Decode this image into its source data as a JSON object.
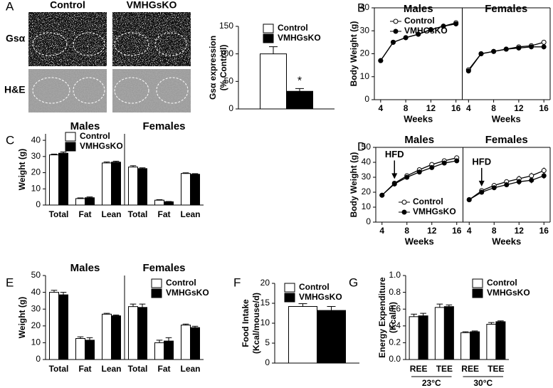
{
  "micrographs": {
    "panel": "A",
    "columns": [
      "Control",
      "VMHGsKO"
    ],
    "rows": [
      "Gsα",
      "H&E"
    ]
  },
  "chart_data": [
    {
      "type": "bar",
      "ylabel": [
        "Gsα expression",
        "(% Control)"
      ],
      "categories": [
        null
      ],
      "series": [
        {
          "name": "Control",
          "color": "#ffffff",
          "values": [
            100
          ],
          "errors": [
            13
          ]
        },
        {
          "name": "VMHGsKO",
          "color": "#000000",
          "values": [
            32
          ],
          "errors": [
            5
          ]
        }
      ],
      "annotation": "*",
      "ylim": [
        0,
        150
      ],
      "yticks": [
        0,
        50,
        100,
        150
      ]
    },
    {
      "type": "line",
      "panel": "B",
      "ylabel": "Body Weight (g)",
      "xlabel": "Weeks",
      "facets": [
        {
          "title": "Males"
        },
        {
          "title": "Females"
        }
      ],
      "x": [
        4,
        6,
        8,
        10,
        12,
        14,
        16
      ],
      "series": [
        {
          "name": "Control",
          "color": "#ffffff",
          "values": [
            [
              17,
              25,
              27,
              28.5,
              30.5,
              32,
              33.5
            ],
            [
              13,
              20,
              21,
              22,
              23,
              23.5,
              25
            ]
          ]
        },
        {
          "name": "VMHGsKO",
          "color": "#000000",
          "values": [
            [
              17,
              25,
              27,
              28.5,
              30.5,
              32,
              33
            ],
            [
              12.5,
              20,
              21,
              22,
              22.5,
              23,
              23
            ]
          ]
        }
      ],
      "xlim": [
        3,
        17
      ],
      "xticks": [
        4,
        8,
        12,
        16
      ],
      "ylim": [
        0,
        40
      ],
      "yticks": [
        0,
        10,
        20,
        30,
        40
      ]
    },
    {
      "type": "bar",
      "panel": "C",
      "ylabel": "Weight (g)",
      "facets": [
        {
          "title": "Males"
        },
        {
          "title": "Females"
        }
      ],
      "categories": [
        "Total",
        "Fat",
        "Lean"
      ],
      "series": [
        {
          "name": "Control",
          "color": "#ffffff",
          "values": [
            [
              31,
              4,
              26
            ],
            [
              23.5,
              3,
              19.5
            ]
          ],
          "errors": [
            [
              0.5,
              0.4,
              0.6
            ],
            [
              0.8,
              0.3,
              0.4
            ]
          ]
        },
        {
          "name": "VMHGsKO",
          "color": "#000000",
          "values": [
            [
              32,
              4.5,
              26.5
            ],
            [
              22.5,
              2,
              19
            ]
          ],
          "errors": [
            [
              0.8,
              0.5,
              0.6
            ],
            [
              0.5,
              0.2,
              0.4
            ]
          ]
        }
      ],
      "ylim": [
        0,
        44
      ],
      "yticks": [
        0,
        10,
        20,
        30,
        40
      ]
    },
    {
      "type": "line",
      "panel": "D",
      "ylabel": "Body Weight (g)",
      "xlabel": "Weeks",
      "facets": [
        {
          "title": "Males",
          "annotation": {
            "text": "HFD",
            "x": 6
          }
        },
        {
          "title": "Females",
          "annotation": {
            "text": "HFD",
            "x": 6
          }
        }
      ],
      "x": [
        4,
        6,
        8,
        10,
        12,
        14,
        16
      ],
      "series": [
        {
          "name": "Control",
          "color": "#ffffff",
          "values": [
            [
              18,
              26,
              31,
              35,
              38.5,
              41,
              43
            ],
            [
              15,
              21,
              24.5,
              27,
              29,
              31,
              34.5
            ]
          ],
          "errors": [
            [
              1.5,
              1,
              1,
              1,
              1.2,
              1.3,
              1.5
            ],
            [
              0.5,
              1,
              1.5,
              1.5,
              2,
              2,
              2
            ]
          ]
        },
        {
          "name": "VMHGsKO",
          "color": "#000000",
          "values": [
            [
              18,
              25.5,
              30,
              33.5,
              36.5,
              39.5,
              41
            ],
            [
              15,
              20,
              23,
              25,
              27,
              28,
              31
            ]
          ],
          "errors": [
            [
              1.5,
              1,
              1,
              1,
              1.2,
              1.3,
              1.5
            ],
            [
              0.5,
              1,
              1.5,
              1.5,
              2,
              2,
              2
            ]
          ]
        }
      ],
      "xlim": [
        3,
        17
      ],
      "xticks": [
        4,
        8,
        12,
        16
      ],
      "ylim": [
        0,
        50
      ],
      "yticks": [
        0,
        10,
        20,
        30,
        40,
        50
      ]
    },
    {
      "type": "bar",
      "panel": "E",
      "ylabel": "Weight (g)",
      "facets": [
        {
          "title": "Males"
        },
        {
          "title": "Females"
        }
      ],
      "categories": [
        "Total",
        "Fat",
        "Lean"
      ],
      "series": [
        {
          "name": "Control",
          "color": "#ffffff",
          "values": [
            [
              40,
              12.5,
              27
            ],
            [
              31.5,
              10,
              20.5
            ]
          ],
          "errors": [
            [
              1.2,
              1,
              0.5
            ],
            [
              1.5,
              1.5,
              0.6
            ]
          ]
        },
        {
          "name": "VMHGsKO",
          "color": "#000000",
          "values": [
            [
              38.5,
              11.5,
              26
            ],
            [
              31,
              11,
              19
            ]
          ],
          "errors": [
            [
              1.5,
              1.5,
              0.5
            ],
            [
              2,
              2,
              0.8
            ]
          ]
        }
      ],
      "ylim": [
        0,
        50
      ],
      "yticks": [
        0,
        10,
        20,
        30,
        40,
        50
      ]
    },
    {
      "type": "bar",
      "panel": "F",
      "ylabel": [
        "Food Intake",
        "(Kcal/mouse/d)"
      ],
      "categories": [
        null
      ],
      "series": [
        {
          "name": "Control",
          "color": "#ffffff",
          "values": [
            14.2
          ],
          "errors": [
            0.7
          ]
        },
        {
          "name": "VMHGsKO",
          "color": "#000000",
          "values": [
            13.2
          ],
          "errors": [
            1
          ]
        }
      ],
      "ylim": [
        0,
        20
      ],
      "yticks": [
        0,
        5,
        10,
        15,
        20
      ]
    },
    {
      "type": "bar",
      "panel": "G",
      "ylabel": [
        "Energy Expenditure",
        "(Kcal/h)"
      ],
      "categories": [
        "REE",
        "TEE",
        "REE",
        "TEE"
      ],
      "groups": [
        "23°C",
        "30°C"
      ],
      "series": [
        {
          "name": "Control",
          "color": "#ffffff",
          "values": [
            0.51,
            0.62,
            0.32,
            0.42
          ],
          "errors": [
            0.03,
            0.04,
            0.01,
            0.02
          ]
        },
        {
          "name": "VMHGsKO",
          "color": "#000000",
          "values": [
            0.52,
            0.63,
            0.33,
            0.45
          ],
          "errors": [
            0.03,
            0.02,
            0.01,
            0.01
          ]
        }
      ],
      "ylim": [
        0,
        1
      ],
      "yticks": [
        {
          "value": 0,
          "label": "0.0"
        },
        0.2,
        0.4,
        0.6,
        0.8,
        {
          "value": 1,
          "label": "1.0"
        }
      ]
    }
  ]
}
